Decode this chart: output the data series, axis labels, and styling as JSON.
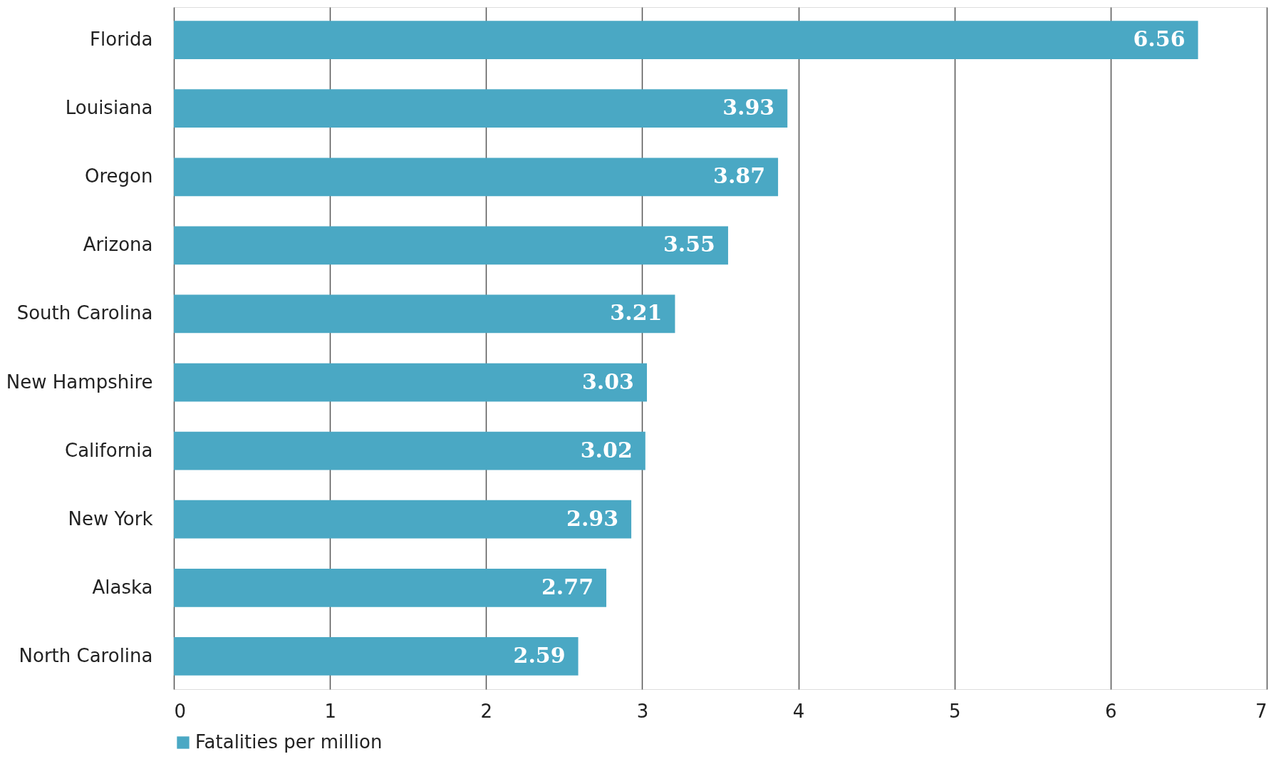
{
  "chart_data": {
    "type": "bar",
    "orientation": "horizontal",
    "categories": [
      "Florida",
      "Louisiana",
      "Oregon",
      "Arizona",
      "South Carolina",
      "New Hampshire",
      "California",
      "New York",
      "Alaska",
      "North Carolina"
    ],
    "series": [
      {
        "name": "Fatalities per million",
        "color": "#4aa8c4",
        "values": [
          6.56,
          3.93,
          3.87,
          3.55,
          3.21,
          3.03,
          3.02,
          2.93,
          2.77,
          2.59
        ]
      }
    ],
    "xlim": [
      0,
      7
    ],
    "xticks": [
      0,
      1,
      2,
      3,
      4,
      5,
      6,
      7
    ],
    "grid": "x",
    "data_labels": true,
    "legend": "bottom"
  }
}
